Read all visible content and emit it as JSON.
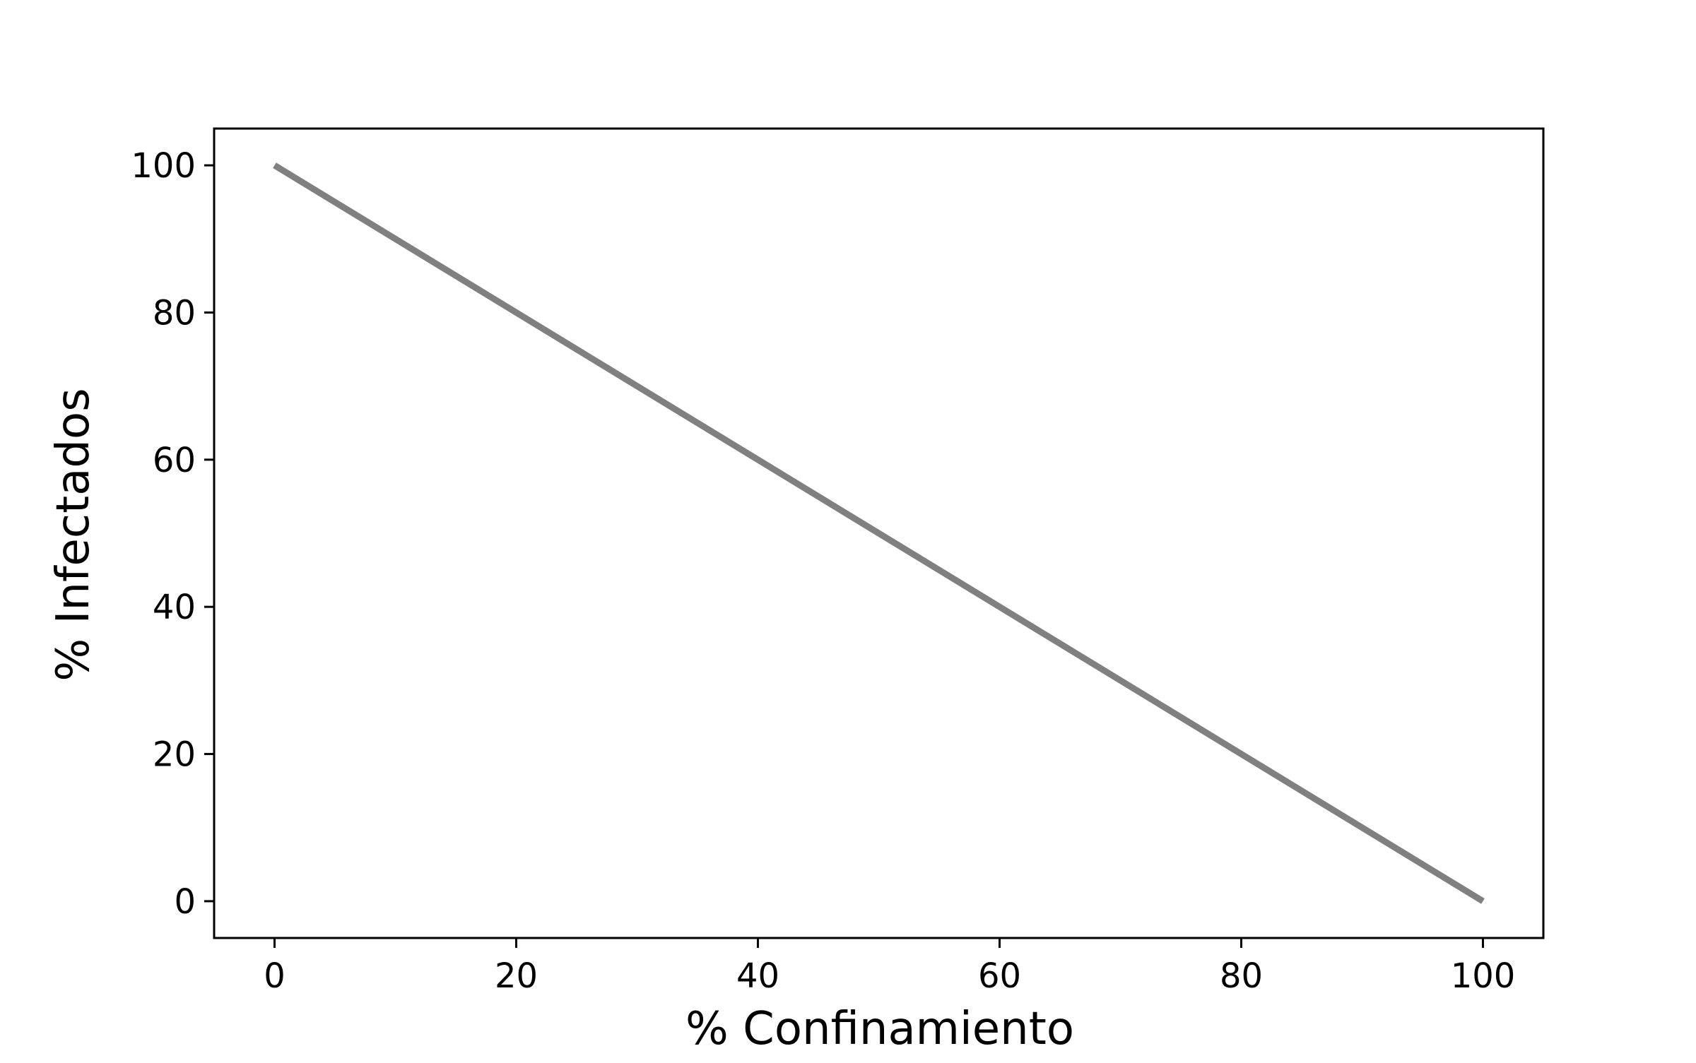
{
  "chart_data": {
    "type": "line",
    "title": "",
    "xlabel": "% Confinamiento",
    "ylabel": "% Infectados",
    "xlim": [
      -5,
      105
    ],
    "ylim": [
      -5,
      105
    ],
    "xticks": [
      0,
      20,
      40,
      60,
      80,
      100
    ],
    "yticks": [
      0,
      20,
      40,
      60,
      80,
      100
    ],
    "grid": false,
    "legend": "none",
    "series": [
      {
        "x": [
          0,
          100
        ],
        "y": [
          100,
          0
        ],
        "color": "#808080"
      }
    ]
  }
}
